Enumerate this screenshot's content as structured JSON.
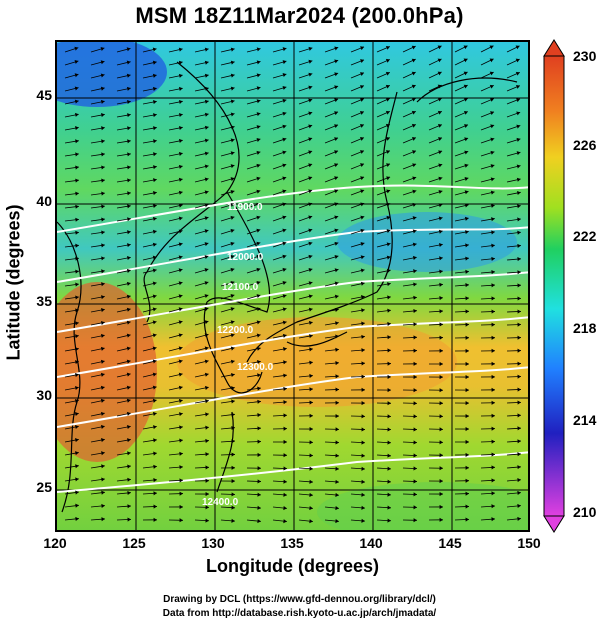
{
  "title": "MSM 18Z11Mar2024 (200.0hPa)",
  "axes": {
    "xlabel": "Longitude (degrees)",
    "ylabel": "Latitude  (degrees)",
    "xticks": [
      "120",
      "125",
      "130",
      "135",
      "140",
      "145",
      "150"
    ],
    "yticks": [
      "25",
      "30",
      "35",
      "40",
      "45"
    ],
    "xlim": [
      120,
      150
    ],
    "ylim": [
      22.4,
      47.6
    ]
  },
  "colorbar": {
    "ticks": [
      "230",
      "226",
      "222",
      "218",
      "214",
      "210"
    ],
    "range": [
      210,
      230
    ],
    "colors": [
      "#e040e0",
      "#2020c0",
      "#2080ff",
      "#20e0e0",
      "#20d060",
      "#a0e020",
      "#f0d020",
      "#f08020",
      "#e04020"
    ]
  },
  "contour_labels": [
    "11900.0",
    "12000.0",
    "12100.0",
    "12200.0",
    "12300.0",
    "12400.0"
  ],
  "footer": {
    "line1": "Drawing by DCL (https://www.gfd-dennou.org/library/dcl/)",
    "line2": "Data from http://database.rish.kyoto-u.ac.jp/arch/jmadata/"
  }
}
